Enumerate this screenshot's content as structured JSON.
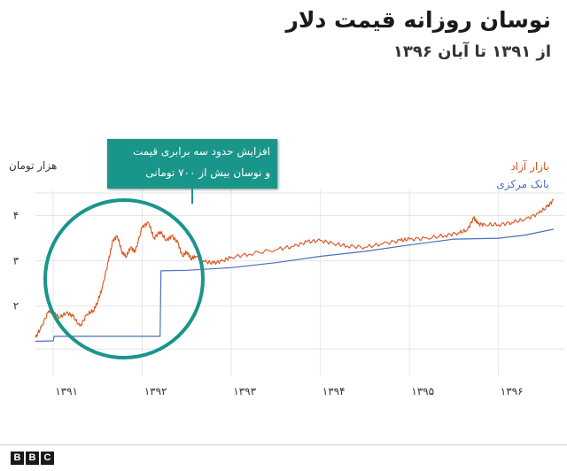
{
  "header": {
    "title": "نوسان روزانه قیمت دلار",
    "subtitle": "از ۱۳۹۱ تا آبان ۱۳۹۶"
  },
  "annotation": {
    "line1": "افزایش حدود سه برابری قیمت",
    "line2": "و نوسان بیش از ۷۰۰ تومانی"
  },
  "footer": {
    "logo": [
      "B",
      "B",
      "C"
    ]
  },
  "colors": {
    "free_market": "#d9531e",
    "central_bank": "#4a6fbf",
    "highlight": "#1a958a",
    "grid": "#e6e6e6"
  },
  "chart_data": {
    "type": "line",
    "title": "نوسان روزانه قیمت دلار",
    "subtitle": "از ۱۳۹۱ تا آبان ۱۳۹۶",
    "ylabel": "هزار تومان",
    "xlabel": "",
    "x_ticks": [
      1391,
      1392,
      1393,
      1394,
      1395,
      1396
    ],
    "x_tick_labels": [
      "۱۳۹۱",
      "۱۳۹۲",
      "۱۳۹۳",
      "۱۳۹۴",
      "۱۳۹۵",
      "۱۳۹۶"
    ],
    "y_ticks": [
      2,
      3,
      4
    ],
    "y_tick_labels": [
      "۲",
      "۳",
      "۴"
    ],
    "xlim": [
      1390.8,
      1396.62
    ],
    "ylim": [
      0.8,
      4.5
    ],
    "grid": true,
    "legend_position": "top-right",
    "series": [
      {
        "name": "بازار آزاد",
        "color": "#d9531e",
        "points": [
          [
            1390.8,
            1.3
          ],
          [
            1390.87,
            1.55
          ],
          [
            1390.95,
            1.9
          ],
          [
            1391.0,
            1.85
          ],
          [
            1391.07,
            1.75
          ],
          [
            1391.15,
            1.85
          ],
          [
            1391.22,
            1.78
          ],
          [
            1391.3,
            1.55
          ],
          [
            1391.38,
            1.82
          ],
          [
            1391.45,
            1.9
          ],
          [
            1391.5,
            2.1
          ],
          [
            1391.55,
            2.4
          ],
          [
            1391.62,
            3.0
          ],
          [
            1391.67,
            3.45
          ],
          [
            1391.72,
            3.55
          ],
          [
            1391.77,
            3.2
          ],
          [
            1391.82,
            3.1
          ],
          [
            1391.87,
            3.3
          ],
          [
            1391.92,
            3.2
          ],
          [
            1392.0,
            3.75
          ],
          [
            1392.07,
            3.85
          ],
          [
            1392.13,
            3.5
          ],
          [
            1392.2,
            3.65
          ],
          [
            1392.27,
            3.45
          ],
          [
            1392.33,
            3.55
          ],
          [
            1392.4,
            3.4
          ],
          [
            1392.45,
            3.1
          ],
          [
            1392.5,
            3.2
          ],
          [
            1392.55,
            3.05
          ],
          [
            1392.6,
            3.1
          ],
          [
            1392.7,
            2.98
          ],
          [
            1392.8,
            2.95
          ],
          [
            1392.9,
            3.0
          ],
          [
            1393.0,
            3.08
          ],
          [
            1393.2,
            3.15
          ],
          [
            1393.5,
            3.25
          ],
          [
            1393.7,
            3.32
          ],
          [
            1393.85,
            3.42
          ],
          [
            1394.0,
            3.45
          ],
          [
            1394.15,
            3.38
          ],
          [
            1394.3,
            3.33
          ],
          [
            1394.5,
            3.3
          ],
          [
            1394.7,
            3.38
          ],
          [
            1394.9,
            3.45
          ],
          [
            1395.0,
            3.48
          ],
          [
            1395.2,
            3.5
          ],
          [
            1395.4,
            3.56
          ],
          [
            1395.55,
            3.62
          ],
          [
            1395.65,
            3.68
          ],
          [
            1395.72,
            3.95
          ],
          [
            1395.77,
            3.82
          ],
          [
            1395.85,
            3.8
          ],
          [
            1396.0,
            3.8
          ],
          [
            1396.15,
            3.85
          ],
          [
            1396.3,
            3.92
          ],
          [
            1396.45,
            4.05
          ],
          [
            1396.55,
            4.2
          ],
          [
            1396.62,
            4.35
          ]
        ]
      },
      {
        "name": "بانک مرکزی",
        "color": "#4a6fbf",
        "points": [
          [
            1390.8,
            1.22
          ],
          [
            1391.0,
            1.23
          ],
          [
            1391.01,
            1.33
          ],
          [
            1392.2,
            1.33
          ],
          [
            1392.21,
            2.78
          ],
          [
            1392.5,
            2.79
          ],
          [
            1393.0,
            2.85
          ],
          [
            1393.5,
            2.96
          ],
          [
            1394.0,
            3.1
          ],
          [
            1394.5,
            3.21
          ],
          [
            1395.0,
            3.35
          ],
          [
            1395.5,
            3.48
          ],
          [
            1396.0,
            3.5
          ],
          [
            1396.3,
            3.57
          ],
          [
            1396.62,
            3.7
          ]
        ]
      }
    ]
  }
}
